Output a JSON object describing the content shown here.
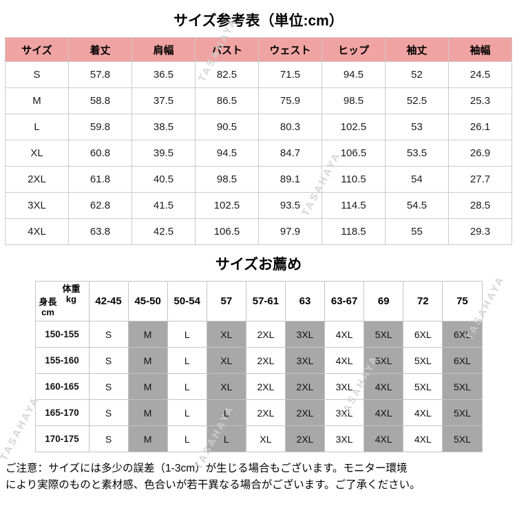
{
  "page": {
    "title_main": "サイズ参考表（単位:cm）",
    "title_recommend": "サイズお薦め",
    "note_lines": [
      "ご注意：サイズには多少の誤差（1-3cm）が生じる場合もございます。モニター環境",
      "により実際のものと素材感、色合いが若干異なる場合がございます。ご了承ください。"
    ],
    "watermark_text": "TASAHAYA"
  },
  "chart_data": [
    {
      "type": "table",
      "title": "サイズ参考表（単位:cm）",
      "unit": "cm",
      "header_bg": "#f0a3a3",
      "columns": [
        "サイズ",
        "着丈",
        "肩幅",
        "バスト",
        "ウェスト",
        "ヒップ",
        "袖丈",
        "袖幅"
      ],
      "rows": [
        [
          "S",
          "57.8",
          "36.5",
          "82.5",
          "71.5",
          "94.5",
          "52",
          "24.5"
        ],
        [
          "M",
          "58.8",
          "37.5",
          "86.5",
          "75.9",
          "98.5",
          "52.5",
          "25.3"
        ],
        [
          "L",
          "59.8",
          "38.5",
          "90.5",
          "80.3",
          "102.5",
          "53",
          "26.1"
        ],
        [
          "XL",
          "60.8",
          "39.5",
          "94.5",
          "84.7",
          "106.5",
          "53.5",
          "26.9"
        ],
        [
          "2XL",
          "61.8",
          "40.5",
          "98.5",
          "89.1",
          "110.5",
          "54",
          "27.7"
        ],
        [
          "3XL",
          "62.8",
          "41.5",
          "102.5",
          "93.5",
          "114.5",
          "54.5",
          "28.5"
        ],
        [
          "4XL",
          "63.8",
          "42.5",
          "106.5",
          "97.9",
          "118.5",
          "55",
          "29.3"
        ]
      ]
    },
    {
      "type": "table",
      "title": "サイズお薦め",
      "corner": {
        "weight_label": "体重",
        "weight_unit": "kg",
        "height_label": "身長",
        "height_unit": "cm"
      },
      "columns": [
        "42-45",
        "45-50",
        "50-54",
        "57",
        "57-61",
        "63",
        "63-67",
        "69",
        "72",
        "75"
      ],
      "rows": [
        {
          "height": "150-155",
          "sizes": [
            "S",
            "M",
            "L",
            "XL",
            "2XL",
            "3XL",
            "4XL",
            "5XL",
            "6XL",
            "6XL"
          ]
        },
        {
          "height": "155-160",
          "sizes": [
            "S",
            "M",
            "L",
            "XL",
            "2XL",
            "3XL",
            "4XL",
            "5XL",
            "5XL",
            "6XL"
          ]
        },
        {
          "height": "160-165",
          "sizes": [
            "S",
            "M",
            "L",
            "XL",
            "2XL",
            "2XL",
            "3XL",
            "4XL",
            "5XL",
            "5XL"
          ]
        },
        {
          "height": "165-170",
          "sizes": [
            "S",
            "M",
            "L",
            "L",
            "2XL",
            "2XL",
            "3XL",
            "4XL",
            "4XL",
            "5XL"
          ]
        },
        {
          "height": "170-175",
          "sizes": [
            "S",
            "M",
            "L",
            "L",
            "XL",
            "2XL",
            "3XL",
            "4XL",
            "4XL",
            "5XL"
          ]
        }
      ],
      "shaded_column_indices": [
        1,
        3,
        5,
        7,
        9
      ],
      "shade_color": "#a8a8a8"
    }
  ]
}
